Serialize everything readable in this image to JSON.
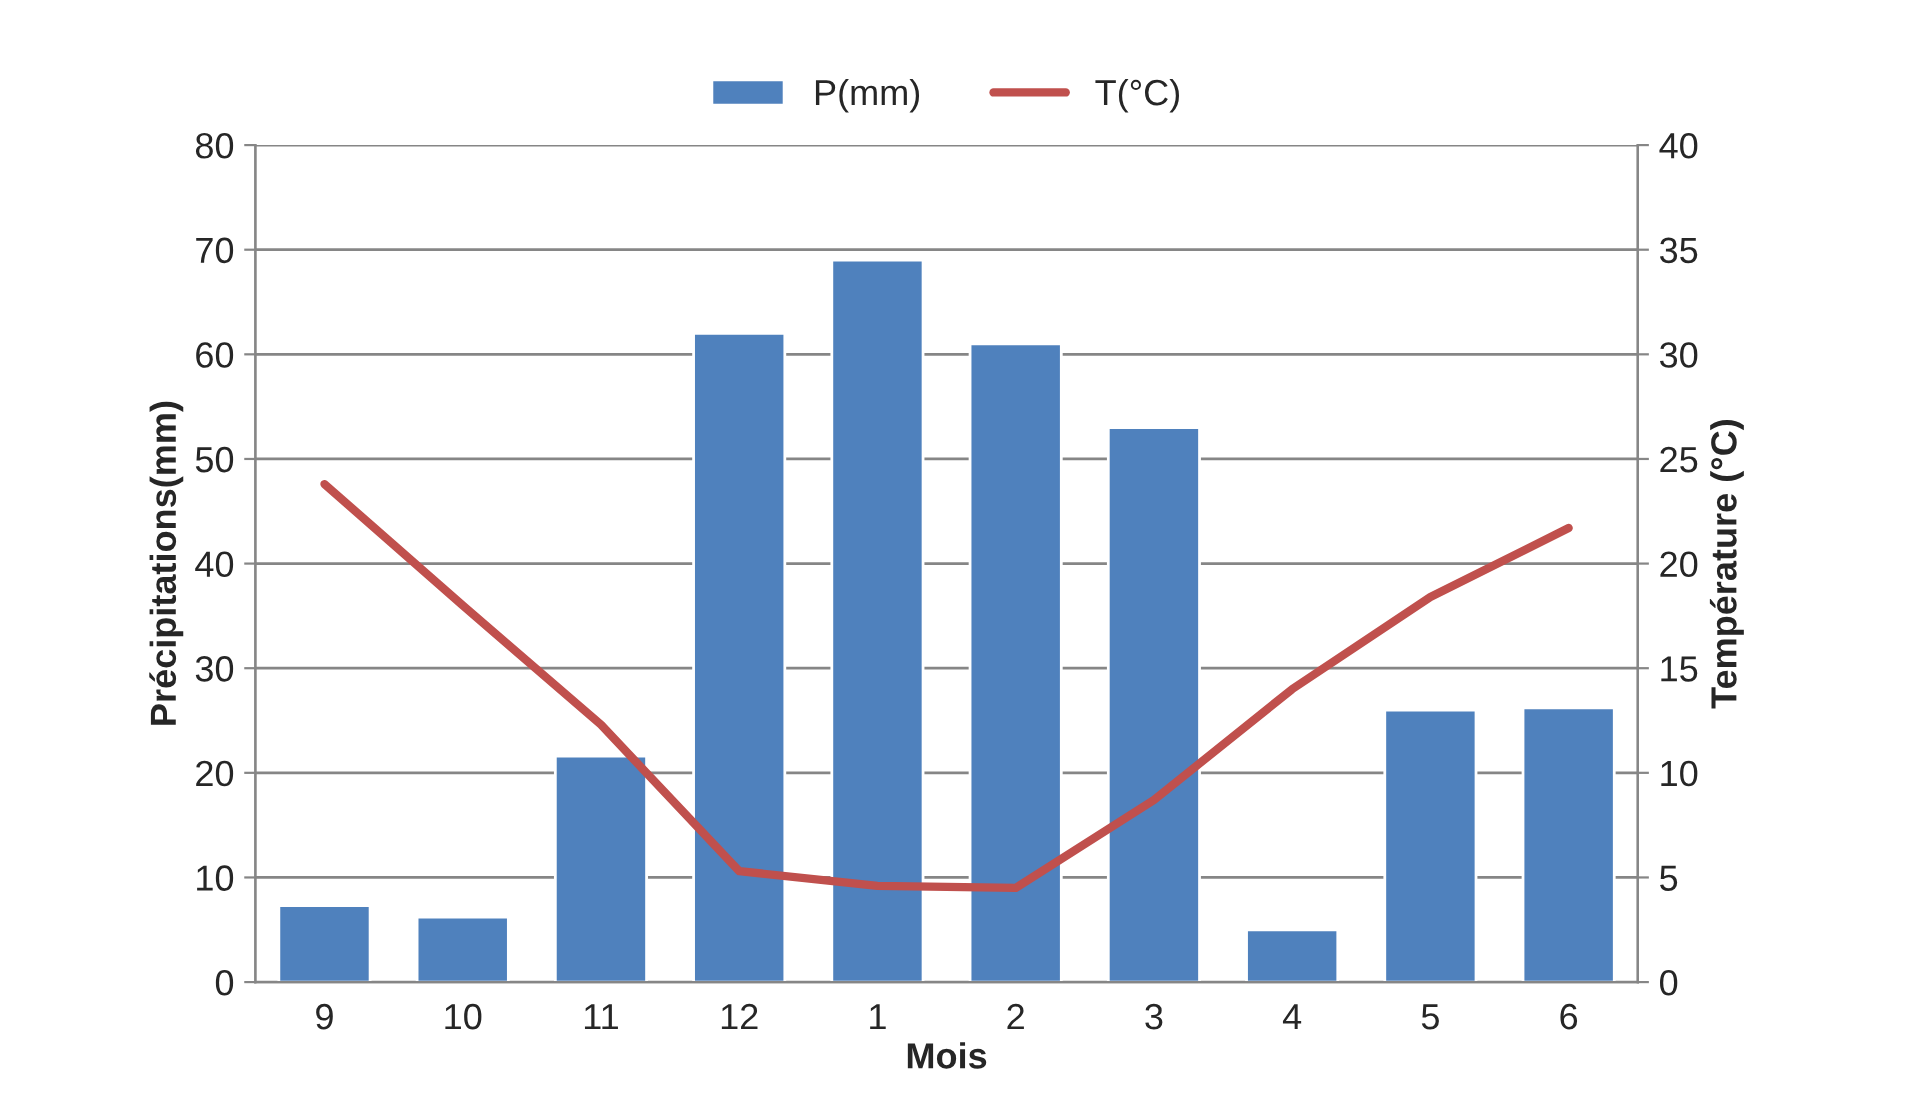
{
  "chart_data": {
    "type": "bar",
    "categories": [
      "9",
      "10",
      "11",
      "12",
      "1",
      "2",
      "3",
      "4",
      "5",
      "6"
    ],
    "xlabel": "Mois",
    "ylabel": "Précipitations(mm)",
    "y2label": "Température (°C)",
    "series": [
      {
        "name": "P(mm)",
        "color": "#4f81bd",
        "values": [
          7.3,
          6.2,
          21.6,
          62,
          69,
          61,
          53,
          5,
          26,
          26.2
        ]
      },
      {
        "name": "T(°C)",
        "type": "line",
        "axis": "y2",
        "color": "#c0504d",
        "values": [
          23.8,
          18,
          12.3,
          5.3,
          4.6,
          4.5,
          8.7,
          14,
          18.4,
          21.7
        ]
      }
    ],
    "ylim": [
      0,
      80
    ],
    "yticks": [
      0,
      10,
      20,
      30,
      40,
      50,
      60,
      70,
      80
    ],
    "y2lim": [
      0,
      40
    ],
    "y2ticks": [
      0,
      5,
      10,
      15,
      20,
      25,
      30,
      35,
      40
    ],
    "grid": "y",
    "legend": "top",
    "marker": "none",
    "line_style": "solid"
  }
}
